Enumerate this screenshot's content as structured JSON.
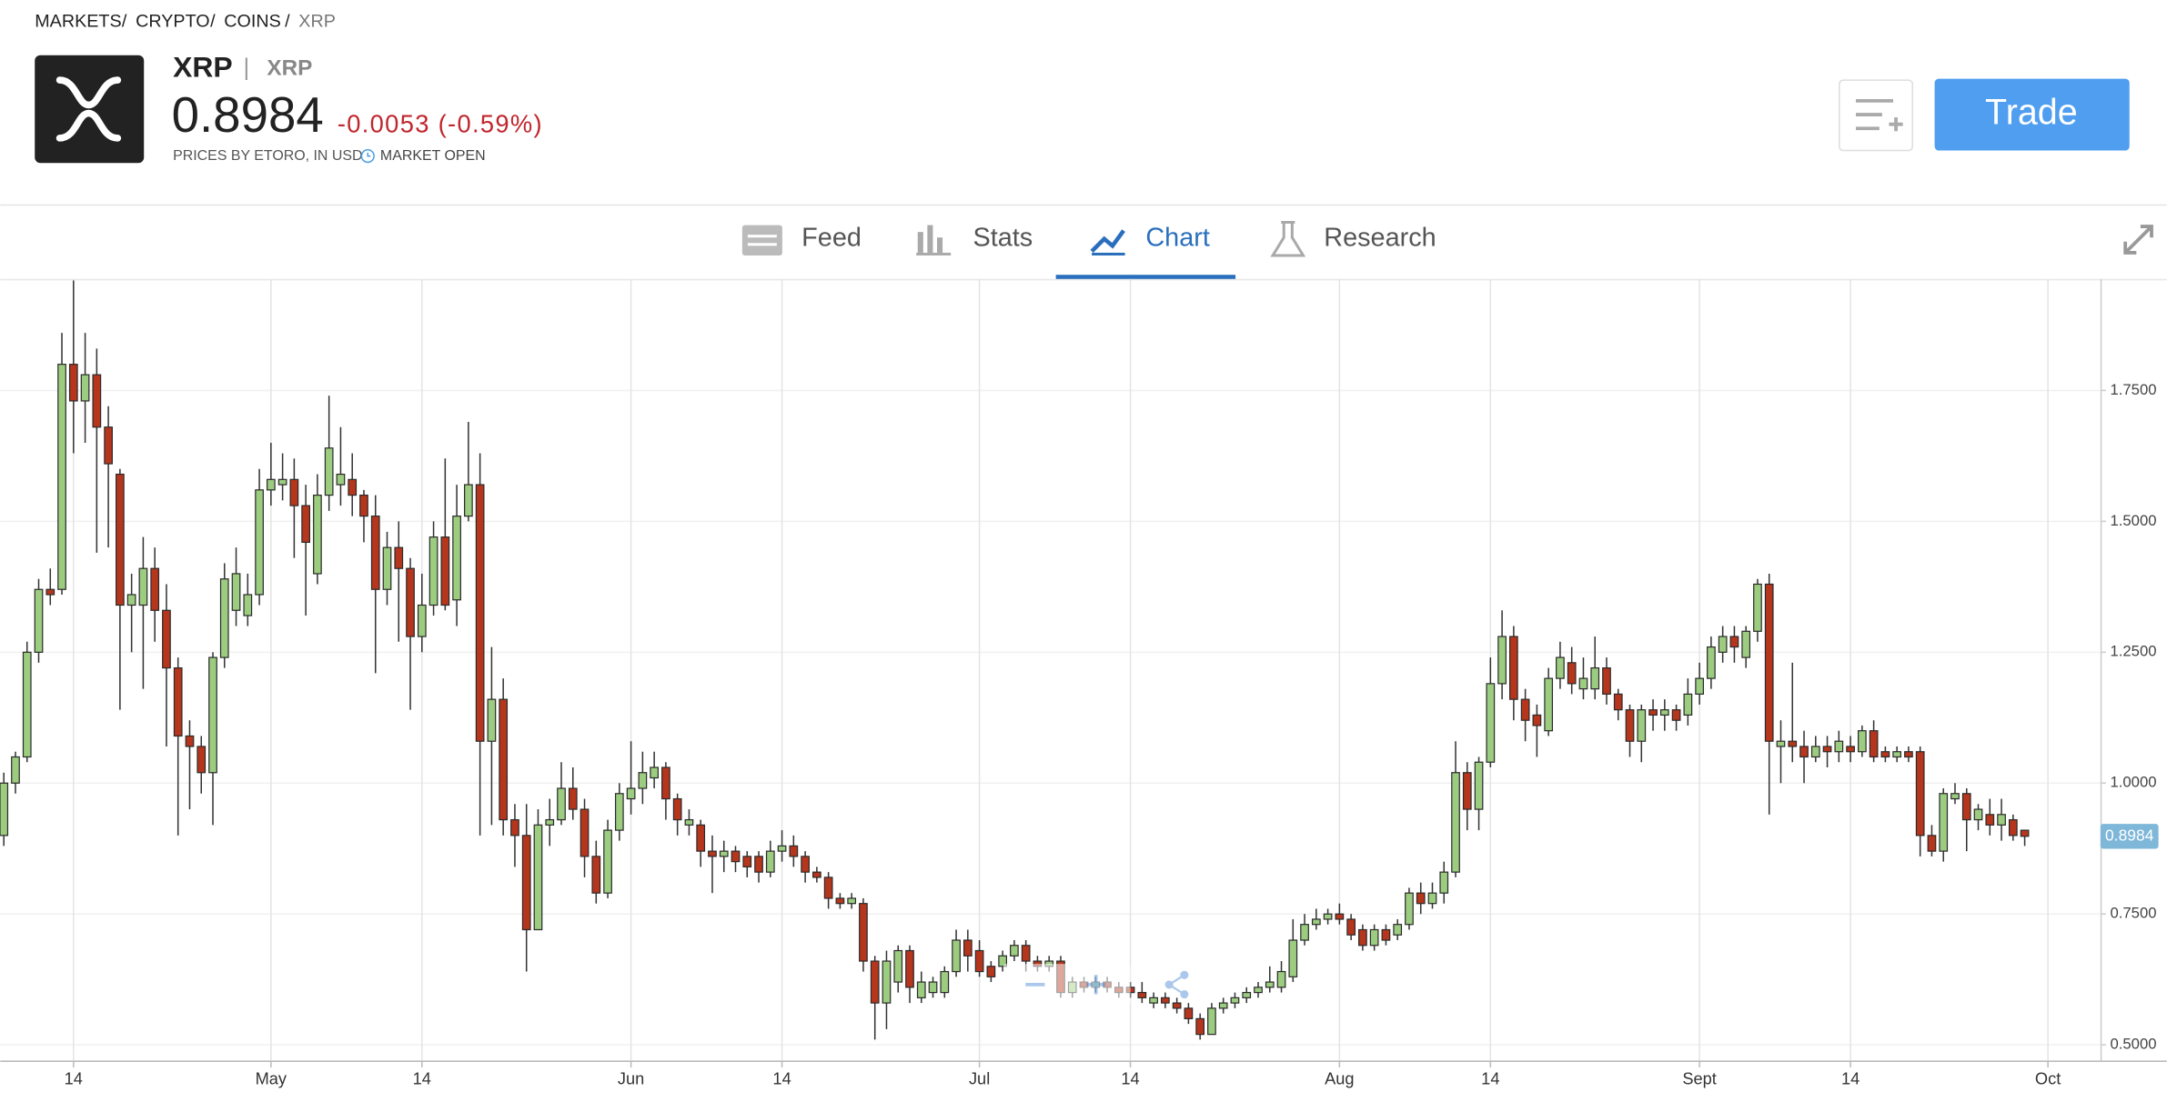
{
  "header": {
    "breadcrumb": [
      "MARKETS",
      "CRYPTO",
      "COINS",
      "XRP"
    ],
    "name": "XRP",
    "symbol": "XRP",
    "price": "0.8984",
    "change": "-0.0053 (-0.59%)",
    "source": "PRICES BY ETORO, IN USD",
    "status": "MARKET OPEN",
    "trade_button": "Trade"
  },
  "tabs": [
    "Feed",
    "Stats",
    "Chart",
    "Research"
  ],
  "active_tab": "Chart",
  "chart_data": {
    "type": "candlestick",
    "x": [
      "Apr 8",
      "Apr 9",
      "Apr 10",
      "Apr 11",
      "Apr 12",
      "Apr 13",
      "Apr 14",
      "Apr 15",
      "Apr 16",
      "Apr 17",
      "Apr 18",
      "Apr 19",
      "Apr 20",
      "Apr 21",
      "Apr 22",
      "Apr 23",
      "Apr 24",
      "Apr 25",
      "Apr 26",
      "Apr 27",
      "Apr 28",
      "Apr 29",
      "Apr 30",
      "May 1",
      "May 2",
      "May 3",
      "May 4",
      "May 5",
      "May 6",
      "May 7",
      "May 8",
      "May 9",
      "May 10",
      "May 11",
      "May 12",
      "May 13",
      "May 14",
      "May 15",
      "May 16",
      "May 17",
      "May 18",
      "May 19",
      "May 20",
      "May 21",
      "May 22",
      "May 23",
      "May 24",
      "May 25",
      "May 26",
      "May 27",
      "May 28",
      "May 29",
      "May 30",
      "May 31",
      "Jun 1",
      "Jun 2",
      "Jun 3",
      "Jun 4",
      "Jun 5",
      "Jun 6",
      "Jun 7",
      "Jun 8",
      "Jun 9",
      "Jun 10",
      "Jun 11",
      "Jun 12",
      "Jun 13",
      "Jun 14",
      "Jun 15",
      "Jun 16",
      "Jun 17",
      "Jun 18",
      "Jun 19",
      "Jun 20",
      "Jun 21",
      "Jun 22",
      "Jun 23",
      "Jun 24",
      "Jun 25",
      "Jun 26",
      "Jun 27",
      "Jun 28",
      "Jun 29",
      "Jun 30",
      "Jul 1",
      "Jul 2",
      "Jul 3",
      "Jul 4",
      "Jul 5",
      "Jul 6",
      "Jul 7",
      "Jul 8",
      "Jul 9",
      "Jul 10",
      "Jul 11",
      "Jul 12",
      "Jul 13",
      "Jul 14",
      "Jul 15",
      "Jul 16",
      "Jul 17",
      "Jul 18",
      "Jul 19",
      "Jul 20",
      "Jul 21",
      "Jul 22",
      "Jul 23",
      "Jul 24",
      "Jul 25",
      "Jul 26",
      "Jul 27",
      "Jul 28",
      "Jul 29",
      "Jul 30",
      "Jul 31",
      "Aug 1",
      "Aug 2",
      "Aug 3",
      "Aug 4",
      "Aug 5",
      "Aug 6",
      "Aug 7",
      "Aug 8",
      "Aug 9",
      "Aug 10",
      "Aug 11",
      "Aug 12",
      "Aug 13",
      "Aug 14",
      "Aug 15",
      "Aug 16",
      "Aug 17",
      "Aug 18",
      "Aug 19",
      "Aug 20",
      "Aug 21",
      "Aug 22",
      "Aug 23",
      "Aug 24",
      "Aug 25",
      "Aug 26",
      "Aug 27",
      "Aug 28",
      "Aug 29",
      "Aug 30",
      "Aug 31",
      "Sep 1",
      "Sep 2",
      "Sep 3",
      "Sep 4",
      "Sep 5",
      "Sep 6",
      "Sep 7",
      "Sep 8",
      "Sep 9",
      "Sep 10",
      "Sep 11",
      "Sep 12",
      "Sep 13",
      "Sep 14",
      "Sep 15",
      "Sep 16",
      "Sep 17",
      "Sep 18",
      "Sep 19",
      "Sep 20",
      "Sep 21",
      "Sep 22",
      "Sep 23",
      "Sep 24",
      "Sep 25",
      "Sep 26",
      "Sep 27",
      "Sep 28",
      "Sep 29",
      "Sep 30",
      "Oct 1"
    ],
    "open": [
      0.9,
      1.0,
      1.05,
      1.25,
      1.37,
      1.37,
      1.8,
      1.73,
      1.78,
      1.68,
      1.59,
      1.34,
      1.34,
      1.41,
      1.33,
      1.22,
      1.09,
      1.07,
      1.02,
      1.24,
      1.33,
      1.32,
      1.36,
      1.56,
      1.57,
      1.58,
      1.53,
      1.4,
      1.55,
      1.57,
      1.58,
      1.55,
      1.51,
      1.37,
      1.45,
      1.41,
      1.28,
      1.34,
      1.47,
      1.35,
      1.51,
      1.57,
      1.08,
      1.16,
      0.93,
      0.9,
      0.72,
      0.92,
      0.93,
      0.99,
      0.95,
      0.86,
      0.79,
      0.91,
      0.97,
      0.99,
      1.01,
      1.03,
      0.97,
      0.92,
      0.92,
      0.87,
      0.86,
      0.87,
      0.86,
      0.86,
      0.83,
      0.87,
      0.88,
      0.86,
      0.83,
      0.82,
      0.78,
      0.77,
      0.77,
      0.66,
      0.58,
      0.62,
      0.68,
      0.59,
      0.6,
      0.6,
      0.64,
      0.7,
      0.68,
      0.65,
      0.65,
      0.67,
      0.69,
      0.66,
      0.65,
      0.66,
      0.6,
      0.62,
      0.61,
      0.62,
      0.61,
      0.61,
      0.6,
      0.58,
      0.59,
      0.58,
      0.57,
      0.55,
      0.52,
      0.57,
      0.58,
      0.59,
      0.6,
      0.61,
      0.61,
      0.63,
      0.7,
      0.73,
      0.74,
      0.75,
      0.74,
      0.72,
      0.69,
      0.72,
      0.71,
      0.73,
      0.79,
      0.77,
      0.79,
      0.83,
      1.02,
      0.95,
      1.04,
      1.19,
      1.28,
      1.16,
      1.13,
      1.1,
      1.2,
      1.23,
      1.18,
      1.18,
      1.22,
      1.17,
      1.14,
      1.08,
      1.14,
      1.13,
      1.14,
      1.13,
      1.17,
      1.2,
      1.25,
      1.28,
      1.24,
      1.29,
      1.38,
      1.07,
      1.08,
      1.07,
      1.05,
      1.07,
      1.06,
      1.07,
      1.06,
      1.1,
      1.06,
      1.05,
      1.06,
      1.06,
      0.9,
      0.87,
      0.97,
      0.98,
      0.93,
      0.94,
      0.92,
      0.93,
      0.91,
      null,
      null
    ],
    "high": [
      1.02,
      1.06,
      1.27,
      1.39,
      1.41,
      1.86,
      1.96,
      1.86,
      1.83,
      1.72,
      1.6,
      1.4,
      1.47,
      1.45,
      1.38,
      1.24,
      1.12,
      1.09,
      1.25,
      1.42,
      1.45,
      1.4,
      1.6,
      1.65,
      1.63,
      1.62,
      1.57,
      1.59,
      1.74,
      1.68,
      1.63,
      1.56,
      1.55,
      1.48,
      1.5,
      1.43,
      1.4,
      1.5,
      1.62,
      1.57,
      1.69,
      1.63,
      1.26,
      1.2,
      0.96,
      0.96,
      0.95,
      0.97,
      1.04,
      1.03,
      0.97,
      0.89,
      0.93,
      1.0,
      1.08,
      1.06,
      1.06,
      1.04,
      0.98,
      0.95,
      0.93,
      0.9,
      0.89,
      0.88,
      0.87,
      0.87,
      0.89,
      0.91,
      0.9,
      0.87,
      0.84,
      0.83,
      0.79,
      0.79,
      0.78,
      0.67,
      0.68,
      0.69,
      0.69,
      0.64,
      0.63,
      0.65,
      0.72,
      0.72,
      0.7,
      0.66,
      0.68,
      0.7,
      0.7,
      0.67,
      0.67,
      0.67,
      0.63,
      0.63,
      0.63,
      0.63,
      0.62,
      0.62,
      0.62,
      0.6,
      0.6,
      0.59,
      0.58,
      0.56,
      0.58,
      0.59,
      0.6,
      0.61,
      0.62,
      0.65,
      0.66,
      0.74,
      0.75,
      0.76,
      0.76,
      0.77,
      0.75,
      0.73,
      0.73,
      0.73,
      0.74,
      0.8,
      0.81,
      0.81,
      0.85,
      1.08,
      1.04,
      1.05,
      1.24,
      1.33,
      1.3,
      1.18,
      1.15,
      1.22,
      1.27,
      1.26,
      1.24,
      1.28,
      1.24,
      1.18,
      1.15,
      1.15,
      1.16,
      1.16,
      1.15,
      1.2,
      1.23,
      1.28,
      1.3,
      1.3,
      1.3,
      1.39,
      1.4,
      1.12,
      1.23,
      1.1,
      1.09,
      1.09,
      1.1,
      1.09,
      1.11,
      1.12,
      1.07,
      1.07,
      1.07,
      1.07,
      0.92,
      0.99,
      1.0,
      0.99,
      0.96,
      0.97,
      0.97,
      0.94,
      0.91,
      null,
      null
    ],
    "low": [
      0.88,
      0.98,
      1.04,
      1.23,
      1.34,
      1.36,
      1.63,
      1.65,
      1.44,
      1.45,
      1.14,
      1.25,
      1.18,
      1.27,
      1.07,
      0.9,
      0.95,
      0.98,
      0.92,
      1.22,
      1.3,
      1.3,
      1.34,
      1.53,
      1.54,
      1.43,
      1.32,
      1.38,
      1.52,
      1.53,
      1.51,
      1.46,
      1.21,
      1.34,
      1.27,
      1.14,
      1.25,
      1.32,
      1.33,
      1.3,
      1.5,
      0.9,
      0.92,
      0.9,
      0.84,
      0.64,
      0.72,
      0.88,
      0.92,
      0.93,
      0.82,
      0.77,
      0.78,
      0.89,
      0.94,
      0.96,
      0.99,
      0.93,
      0.9,
      0.9,
      0.84,
      0.79,
      0.83,
      0.83,
      0.82,
      0.81,
      0.82,
      0.85,
      0.84,
      0.81,
      0.81,
      0.76,
      0.76,
      0.76,
      0.64,
      0.51,
      0.53,
      0.6,
      0.58,
      0.58,
      0.59,
      0.59,
      0.63,
      0.64,
      0.63,
      0.62,
      0.64,
      0.66,
      0.64,
      0.64,
      0.64,
      0.59,
      0.59,
      0.6,
      0.6,
      0.6,
      0.59,
      0.59,
      0.58,
      0.57,
      0.57,
      0.56,
      0.54,
      0.51,
      0.52,
      0.56,
      0.57,
      0.58,
      0.59,
      0.6,
      0.6,
      0.62,
      0.69,
      0.72,
      0.73,
      0.73,
      0.7,
      0.68,
      0.68,
      0.69,
      0.7,
      0.72,
      0.75,
      0.76,
      0.77,
      0.82,
      0.91,
      0.91,
      1.03,
      1.16,
      1.12,
      1.08,
      1.05,
      1.09,
      1.18,
      1.17,
      1.16,
      1.16,
      1.15,
      1.12,
      1.05,
      1.04,
      1.1,
      1.1,
      1.1,
      1.11,
      1.15,
      1.18,
      1.23,
      1.23,
      1.22,
      1.27,
      0.94,
      1.0,
      1.04,
      1.0,
      1.04,
      1.03,
      1.04,
      1.04,
      1.05,
      1.04,
      1.04,
      1.04,
      1.04,
      0.86,
      0.86,
      0.85,
      0.96,
      0.87,
      0.91,
      0.9,
      0.89,
      0.89,
      0.88,
      null,
      null
    ],
    "close": [
      1.0,
      1.05,
      1.25,
      1.37,
      1.36,
      1.8,
      1.73,
      1.78,
      1.68,
      1.61,
      1.34,
      1.36,
      1.41,
      1.33,
      1.22,
      1.09,
      1.07,
      1.02,
      1.24,
      1.39,
      1.4,
      1.36,
      1.56,
      1.58,
      1.58,
      1.53,
      1.46,
      1.55,
      1.64,
      1.59,
      1.55,
      1.51,
      1.37,
      1.45,
      1.41,
      1.28,
      1.34,
      1.47,
      1.34,
      1.51,
      1.57,
      1.08,
      1.16,
      0.93,
      0.9,
      0.72,
      0.92,
      0.93,
      0.99,
      0.95,
      0.86,
      0.79,
      0.91,
      0.98,
      0.99,
      1.02,
      1.03,
      0.97,
      0.93,
      0.93,
      0.87,
      0.86,
      0.87,
      0.85,
      0.84,
      0.83,
      0.87,
      0.88,
      0.86,
      0.83,
      0.82,
      0.78,
      0.77,
      0.78,
      0.66,
      0.58,
      0.66,
      0.68,
      0.61,
      0.62,
      0.62,
      0.64,
      0.7,
      0.67,
      0.64,
      0.63,
      0.67,
      0.69,
      0.66,
      0.65,
      0.66,
      0.6,
      0.62,
      0.61,
      0.62,
      0.61,
      0.6,
      0.6,
      0.59,
      0.59,
      0.58,
      0.57,
      0.55,
      0.52,
      0.57,
      0.58,
      0.59,
      0.6,
      0.61,
      0.62,
      0.64,
      0.7,
      0.73,
      0.74,
      0.75,
      0.74,
      0.71,
      0.69,
      0.72,
      0.7,
      0.73,
      0.79,
      0.77,
      0.79,
      0.83,
      1.02,
      0.95,
      1.04,
      1.19,
      1.28,
      1.16,
      1.12,
      1.11,
      1.2,
      1.24,
      1.19,
      1.2,
      1.22,
      1.17,
      1.14,
      1.08,
      1.14,
      1.13,
      1.14,
      1.12,
      1.17,
      1.2,
      1.26,
      1.28,
      1.26,
      1.29,
      1.38,
      1.08,
      1.08,
      1.07,
      1.05,
      1.07,
      1.06,
      1.08,
      1.06,
      1.1,
      1.05,
      1.05,
      1.06,
      1.05,
      0.9,
      0.87,
      0.98,
      0.98,
      0.93,
      0.95,
      0.92,
      0.94,
      0.9,
      0.8984,
      null,
      null
    ],
    "up_color": "#9ccc80",
    "down_color": "#b5361c",
    "ylim": [
      0.47,
      1.963
    ],
    "yticks": [
      {
        "value": 0.5,
        "label": "0.5000"
      },
      {
        "value": 0.75,
        "label": "0.7500"
      },
      {
        "value": 1,
        "label": "1.0000"
      },
      {
        "value": 1.25,
        "label": "1.2500"
      },
      {
        "value": 1.5,
        "label": "1.5000"
      },
      {
        "value": 1.75,
        "label": "1.7500"
      }
    ],
    "xticks": [
      {
        "value": "Apr 14",
        "label": "14"
      },
      {
        "value": "May 1",
        "label": "May"
      },
      {
        "value": "May 14",
        "label": "14"
      },
      {
        "value": "Jun 1",
        "label": "Jun"
      },
      {
        "value": "Jun 14",
        "label": "14"
      },
      {
        "value": "Jul 1",
        "label": "Jul"
      },
      {
        "value": "Jul 14",
        "label": "14"
      },
      {
        "value": "Aug 1",
        "label": "Aug"
      },
      {
        "value": "Aug 14",
        "label": "14"
      },
      {
        "value": "Sep 1",
        "label": "Sept"
      },
      {
        "value": "Sep 14",
        "label": "14"
      },
      {
        "value": "Oct 1",
        "label": "Oct"
      }
    ],
    "grid": true,
    "last_price": 0.8984
  }
}
